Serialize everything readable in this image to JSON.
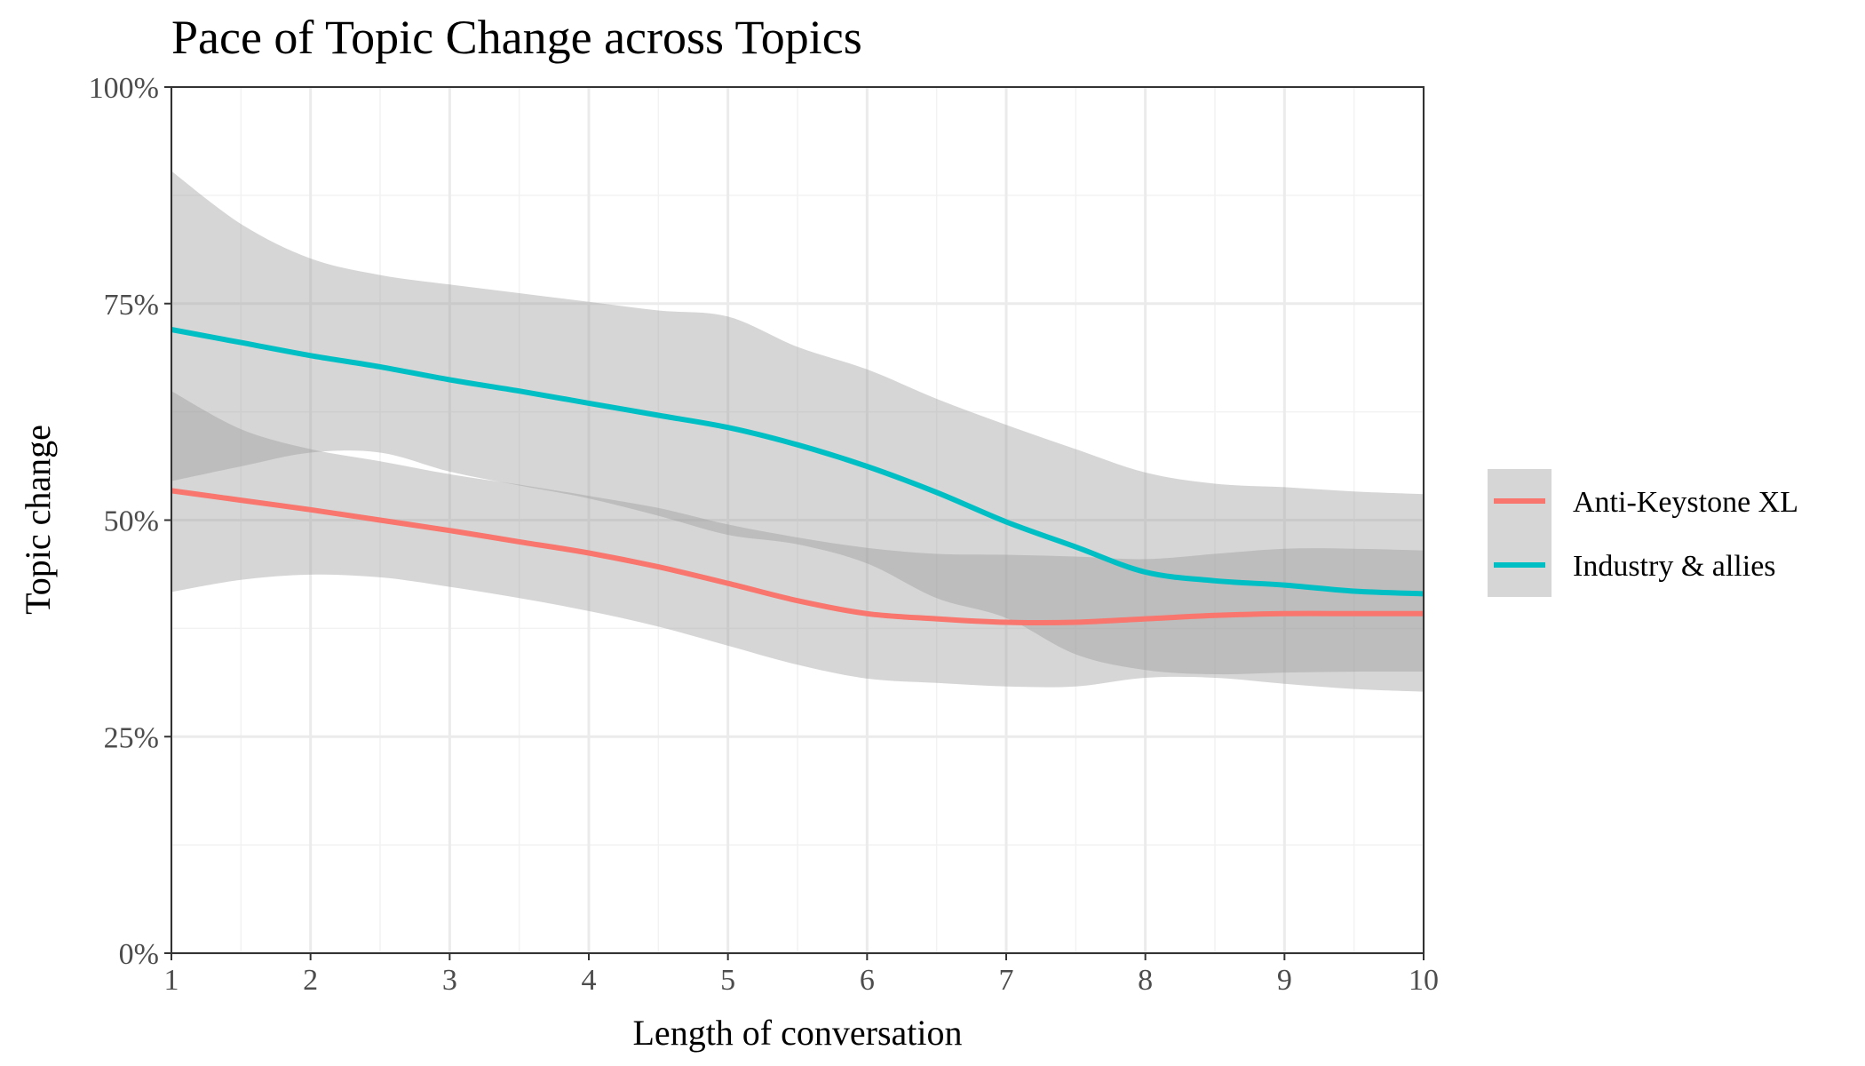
{
  "chart_data": {
    "type": "line",
    "title": "Pace of Topic Change across Topics",
    "xlabel": "Length of conversation",
    "ylabel": "Topic change",
    "xlim": [
      1,
      10
    ],
    "ylim": [
      0,
      1
    ],
    "x_ticks": [
      "1",
      "2",
      "3",
      "4",
      "5",
      "6",
      "7",
      "8",
      "9",
      "10"
    ],
    "y_ticks": [
      {
        "value": 0,
        "label": "0%"
      },
      {
        "value": 0.25,
        "label": "25%"
      },
      {
        "value": 0.5,
        "label": "50%"
      },
      {
        "value": 0.75,
        "label": "75%"
      },
      {
        "value": 1,
        "label": "100%"
      }
    ],
    "grid": true,
    "legend_position": "right",
    "ribbon_color": "#999999",
    "series": [
      {
        "name": "Anti-Keystone XL",
        "color": "#F8766D",
        "x": [
          1,
          1.5,
          2,
          2.5,
          3,
          3.5,
          4,
          4.5,
          5,
          5.5,
          6,
          6.5,
          7,
          7.5,
          8,
          8.5,
          9,
          9.5,
          10
        ],
        "y": [
          0.534,
          0.523,
          0.512,
          0.5,
          0.488,
          0.475,
          0.462,
          0.446,
          0.427,
          0.407,
          0.392,
          0.386,
          0.382,
          0.382,
          0.386,
          0.39,
          0.392,
          0.392,
          0.392
        ],
        "lower": [
          0.417,
          0.431,
          0.437,
          0.434,
          0.423,
          0.41,
          0.395,
          0.377,
          0.355,
          0.333,
          0.317,
          0.312,
          0.308,
          0.308,
          0.318,
          0.318,
          0.311,
          0.305,
          0.302
        ],
        "upper": [
          0.649,
          0.605,
          0.582,
          0.568,
          0.553,
          0.541,
          0.528,
          0.514,
          0.495,
          0.48,
          0.468,
          0.461,
          0.46,
          0.458,
          0.455,
          0.461,
          0.467,
          0.467,
          0.465
        ]
      },
      {
        "name": "Industry & allies",
        "color": "#00BFC4",
        "x": [
          1,
          1.5,
          2,
          2.5,
          3,
          3.5,
          4,
          4.5,
          5,
          5.5,
          6,
          6.5,
          7,
          7.5,
          8,
          8.5,
          9,
          9.5,
          10
        ],
        "y": [
          0.72,
          0.705,
          0.69,
          0.677,
          0.662,
          0.649,
          0.635,
          0.621,
          0.607,
          0.587,
          0.562,
          0.532,
          0.498,
          0.469,
          0.44,
          0.43,
          0.425,
          0.418,
          0.415
        ],
        "lower": [
          0.545,
          0.562,
          0.578,
          0.578,
          0.556,
          0.54,
          0.525,
          0.505,
          0.483,
          0.472,
          0.45,
          0.41,
          0.387,
          0.345,
          0.327,
          0.322,
          0.324,
          0.325,
          0.325
        ],
        "upper": [
          0.903,
          0.842,
          0.802,
          0.783,
          0.772,
          0.762,
          0.752,
          0.742,
          0.735,
          0.7,
          0.674,
          0.64,
          0.61,
          0.582,
          0.555,
          0.542,
          0.538,
          0.533,
          0.53
        ]
      }
    ]
  }
}
